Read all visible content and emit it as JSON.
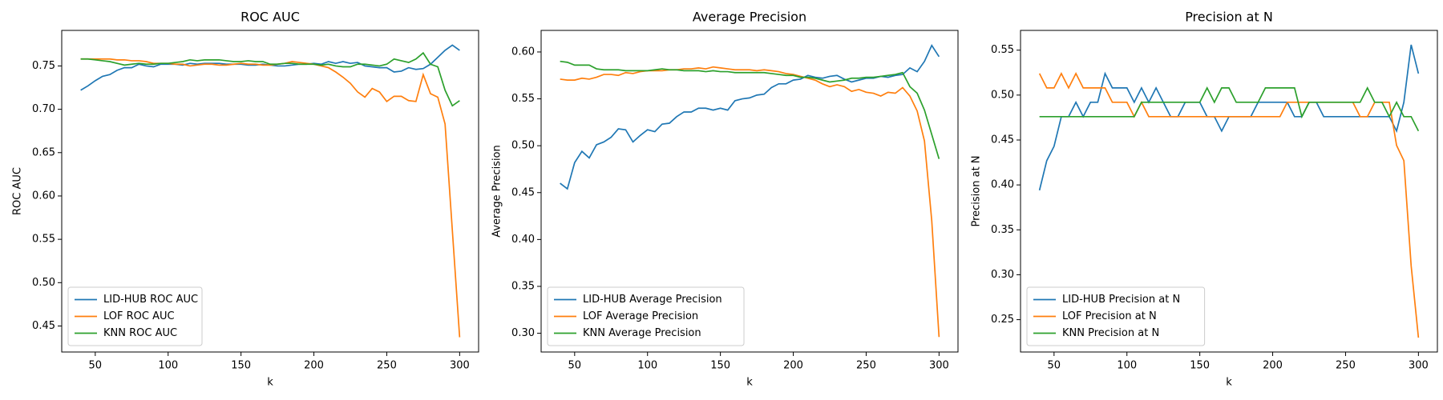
{
  "chart_data": [
    {
      "type": "line",
      "title": "ROC AUC",
      "x_label": "k",
      "y_label": "ROC AUC",
      "legend": "lower left",
      "grid": false,
      "x": [
        40,
        45,
        50,
        55,
        60,
        65,
        70,
        75,
        80,
        85,
        90,
        95,
        100,
        105,
        110,
        115,
        120,
        125,
        130,
        135,
        140,
        145,
        150,
        155,
        160,
        165,
        170,
        175,
        180,
        185,
        190,
        195,
        200,
        205,
        210,
        215,
        220,
        225,
        230,
        235,
        240,
        245,
        250,
        255,
        260,
        265,
        270,
        275,
        280,
        285,
        290,
        295,
        300
      ],
      "xlim": [
        27,
        313
      ],
      "xticks": [
        50,
        100,
        150,
        200,
        250,
        300
      ],
      "ylim": [
        0.42,
        0.791
      ],
      "yticks": [
        0.45,
        {
          "value": 0.5,
          "label": "0.50"
        },
        0.55,
        {
          "value": 0.6,
          "label": "0.60"
        },
        0.65,
        {
          "value": 0.7,
          "label": "0.70"
        },
        0.75
      ],
      "series": [
        {
          "name": "LID-HUB ROC AUC",
          "color": "#1f77b4",
          "values": [
            0.722,
            0.727,
            0.733,
            0.738,
            0.74,
            0.745,
            0.748,
            0.748,
            0.752,
            0.75,
            0.749,
            0.752,
            0.752,
            0.752,
            0.751,
            0.753,
            0.752,
            0.753,
            0.753,
            0.753,
            0.752,
            0.752,
            0.752,
            0.751,
            0.751,
            0.752,
            0.751,
            0.75,
            0.75,
            0.751,
            0.752,
            0.752,
            0.753,
            0.752,
            0.755,
            0.753,
            0.755,
            0.753,
            0.754,
            0.75,
            0.749,
            0.748,
            0.748,
            0.743,
            0.744,
            0.748,
            0.746,
            0.747,
            0.752,
            0.76,
            0.768,
            0.774,
            0.768
          ]
        },
        {
          "name": "LOF ROC AUC",
          "color": "#ff7f0e",
          "values": [
            0.758,
            0.758,
            0.758,
            0.758,
            0.758,
            0.757,
            0.757,
            0.756,
            0.756,
            0.755,
            0.753,
            0.753,
            0.753,
            0.752,
            0.752,
            0.75,
            0.751,
            0.752,
            0.752,
            0.751,
            0.751,
            0.752,
            0.753,
            0.752,
            0.752,
            0.751,
            0.751,
            0.752,
            0.753,
            0.755,
            0.754,
            0.753,
            0.752,
            0.75,
            0.748,
            0.743,
            0.737,
            0.73,
            0.72,
            0.714,
            0.724,
            0.72,
            0.709,
            0.715,
            0.715,
            0.71,
            0.709,
            0.74,
            0.718,
            0.714,
            0.683,
            0.56,
            0.437
          ]
        },
        {
          "name": "KNN ROC AUC",
          "color": "#2ca02c",
          "values": [
            0.758,
            0.758,
            0.757,
            0.756,
            0.755,
            0.753,
            0.751,
            0.752,
            0.753,
            0.752,
            0.752,
            0.753,
            0.753,
            0.754,
            0.755,
            0.757,
            0.756,
            0.757,
            0.757,
            0.757,
            0.756,
            0.755,
            0.755,
            0.756,
            0.755,
            0.755,
            0.752,
            0.752,
            0.753,
            0.753,
            0.752,
            0.752,
            0.752,
            0.751,
            0.752,
            0.75,
            0.749,
            0.749,
            0.752,
            0.752,
            0.751,
            0.75,
            0.752,
            0.758,
            0.756,
            0.754,
            0.758,
            0.765,
            0.752,
            0.749,
            0.722,
            0.704,
            0.71
          ]
        }
      ]
    },
    {
      "type": "line",
      "title": "Average Precision",
      "x_label": "k",
      "y_label": "Average Precision",
      "legend": "lower left",
      "grid": false,
      "x": [
        40,
        45,
        50,
        55,
        60,
        65,
        70,
        75,
        80,
        85,
        90,
        95,
        100,
        105,
        110,
        115,
        120,
        125,
        130,
        135,
        140,
        145,
        150,
        155,
        160,
        165,
        170,
        175,
        180,
        185,
        190,
        195,
        200,
        205,
        210,
        215,
        220,
        225,
        230,
        235,
        240,
        245,
        250,
        255,
        260,
        265,
        270,
        275,
        280,
        285,
        290,
        295,
        300
      ],
      "xlim": [
        27,
        313
      ],
      "xticks": [
        50,
        100,
        150,
        200,
        250,
        300
      ],
      "ylim": [
        0.28,
        0.623
      ],
      "yticks": [
        {
          "value": 0.3,
          "label": "0.30"
        },
        0.35,
        {
          "value": 0.4,
          "label": "0.40"
        },
        0.45,
        {
          "value": 0.5,
          "label": "0.50"
        },
        0.55,
        {
          "value": 0.6,
          "label": "0.60"
        }
      ],
      "series": [
        {
          "name": "LID-HUB Average Precision",
          "color": "#1f77b4",
          "values": [
            0.46,
            0.454,
            0.482,
            0.494,
            0.487,
            0.501,
            0.504,
            0.509,
            0.518,
            0.517,
            0.504,
            0.511,
            0.517,
            0.515,
            0.523,
            0.524,
            0.531,
            0.536,
            0.536,
            0.54,
            0.54,
            0.538,
            0.54,
            0.538,
            0.548,
            0.55,
            0.551,
            0.554,
            0.555,
            0.562,
            0.566,
            0.566,
            0.57,
            0.571,
            0.575,
            0.573,
            0.572,
            0.574,
            0.575,
            0.571,
            0.568,
            0.57,
            0.572,
            0.572,
            0.574,
            0.573,
            0.575,
            0.576,
            0.583,
            0.579,
            0.59,
            0.607,
            0.595
          ]
        },
        {
          "name": "LOF Average Precision",
          "color": "#ff7f0e",
          "values": [
            0.571,
            0.57,
            0.57,
            0.572,
            0.571,
            0.573,
            0.576,
            0.576,
            0.575,
            0.578,
            0.577,
            0.579,
            0.58,
            0.58,
            0.58,
            0.581,
            0.581,
            0.582,
            0.582,
            0.583,
            0.582,
            0.584,
            0.583,
            0.582,
            0.581,
            0.581,
            0.581,
            0.58,
            0.581,
            0.58,
            0.579,
            0.577,
            0.576,
            0.574,
            0.572,
            0.57,
            0.566,
            0.563,
            0.565,
            0.563,
            0.558,
            0.56,
            0.557,
            0.556,
            0.553,
            0.557,
            0.556,
            0.562,
            0.553,
            0.537,
            0.505,
            0.42,
            0.296
          ]
        },
        {
          "name": "KNN Average Precision",
          "color": "#2ca02c",
          "values": [
            0.59,
            0.589,
            0.586,
            0.586,
            0.586,
            0.582,
            0.581,
            0.581,
            0.581,
            0.58,
            0.58,
            0.58,
            0.58,
            0.581,
            0.582,
            0.581,
            0.581,
            0.58,
            0.58,
            0.58,
            0.579,
            0.58,
            0.579,
            0.579,
            0.578,
            0.578,
            0.578,
            0.578,
            0.578,
            0.577,
            0.576,
            0.575,
            0.575,
            0.573,
            0.573,
            0.572,
            0.57,
            0.568,
            0.569,
            0.57,
            0.572,
            0.572,
            0.573,
            0.573,
            0.574,
            0.575,
            0.576,
            0.578,
            0.563,
            0.556,
            0.538,
            0.512,
            0.486
          ]
        }
      ]
    },
    {
      "type": "line",
      "title": "Precision at N",
      "x_label": "k",
      "y_label": "Precision at N",
      "legend": "lower left",
      "grid": false,
      "x": [
        40,
        45,
        50,
        55,
        60,
        65,
        70,
        75,
        80,
        85,
        90,
        95,
        100,
        105,
        110,
        115,
        120,
        125,
        130,
        135,
        140,
        145,
        150,
        155,
        160,
        165,
        170,
        175,
        180,
        185,
        190,
        195,
        200,
        205,
        210,
        215,
        220,
        225,
        230,
        235,
        240,
        245,
        250,
        255,
        260,
        265,
        270,
        275,
        280,
        285,
        290,
        295,
        300
      ],
      "xlim": [
        27,
        313
      ],
      "xticks": [
        50,
        100,
        150,
        200,
        250,
        300
      ],
      "ylim": [
        0.214,
        0.572
      ],
      "yticks": [
        0.25,
        {
          "value": 0.3,
          "label": "0.30"
        },
        0.35,
        {
          "value": 0.4,
          "label": "0.40"
        },
        0.45,
        {
          "value": 0.5,
          "label": "0.50"
        },
        0.55
      ],
      "series": [
        {
          "name": "LID-HUB Precision at N",
          "color": "#1f77b4",
          "values": [
            0.394,
            0.427,
            0.443,
            0.476,
            0.476,
            0.492,
            0.476,
            0.492,
            0.492,
            0.524,
            0.508,
            0.508,
            0.508,
            0.492,
            0.508,
            0.492,
            0.508,
            0.492,
            0.476,
            0.476,
            0.492,
            0.492,
            0.492,
            0.476,
            0.476,
            0.46,
            0.476,
            0.476,
            0.476,
            0.476,
            0.492,
            0.492,
            0.492,
            0.492,
            0.492,
            0.476,
            0.476,
            0.492,
            0.492,
            0.476,
            0.476,
            0.476,
            0.476,
            0.476,
            0.476,
            0.476,
            0.476,
            0.476,
            0.476,
            0.46,
            0.492,
            0.556,
            0.524
          ]
        },
        {
          "name": "LOF Precision at N",
          "color": "#ff7f0e",
          "values": [
            0.524,
            0.508,
            0.508,
            0.524,
            0.508,
            0.524,
            0.508,
            0.508,
            0.508,
            0.508,
            0.492,
            0.492,
            0.492,
            0.476,
            0.492,
            0.476,
            0.476,
            0.476,
            0.476,
            0.476,
            0.476,
            0.476,
            0.476,
            0.476,
            0.476,
            0.476,
            0.476,
            0.476,
            0.476,
            0.476,
            0.476,
            0.476,
            0.476,
            0.476,
            0.492,
            0.492,
            0.492,
            0.492,
            0.492,
            0.492,
            0.492,
            0.492,
            0.492,
            0.492,
            0.476,
            0.476,
            0.492,
            0.492,
            0.492,
            0.444,
            0.427,
            0.31,
            0.23
          ]
        },
        {
          "name": "KNN Precision at N",
          "color": "#2ca02c",
          "values": [
            0.476,
            0.476,
            0.476,
            0.476,
            0.476,
            0.476,
            0.476,
            0.476,
            0.476,
            0.476,
            0.476,
            0.476,
            0.476,
            0.476,
            0.492,
            0.492,
            0.492,
            0.492,
            0.492,
            0.492,
            0.492,
            0.492,
            0.492,
            0.508,
            0.492,
            0.508,
            0.508,
            0.492,
            0.492,
            0.492,
            0.492,
            0.508,
            0.508,
            0.508,
            0.508,
            0.508,
            0.476,
            0.492,
            0.492,
            0.492,
            0.492,
            0.492,
            0.492,
            0.492,
            0.492,
            0.508,
            0.492,
            0.492,
            0.476,
            0.492,
            0.476,
            0.476,
            0.46
          ]
        }
      ]
    }
  ]
}
